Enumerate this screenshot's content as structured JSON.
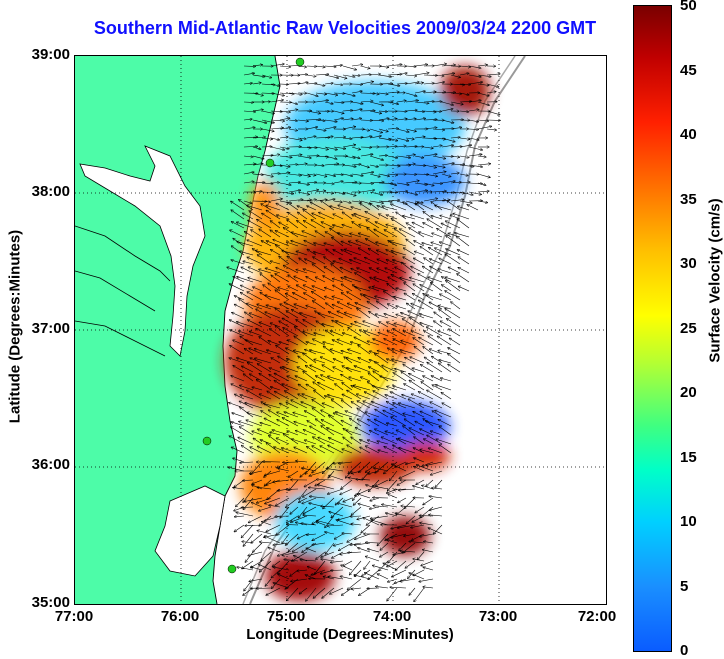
{
  "title": "Southern Mid-Atlantic Raw Velocities 2009/03/24 2200 GMT",
  "axes": {
    "xlabel": "Longitude (Degrees:Minutes)",
    "ylabel": "Latitude (Degrees:Minutes)",
    "xticks": [
      "77:00",
      "76:00",
      "75:00",
      "74:00",
      "73:00",
      "72:00"
    ],
    "yticks": [
      "39:00",
      "38:00",
      "37:00",
      "36:00",
      "35:00"
    ]
  },
  "colorbar": {
    "label": "Surface Velocity (cm/s)",
    "ticks": [
      "50",
      "45",
      "40",
      "35",
      "30",
      "25",
      "20",
      "15",
      "10",
      "5",
      "0"
    ],
    "range": [
      0,
      50
    ]
  },
  "colors": {
    "land": "#4dfca8",
    "title": "#1010ff",
    "station": "#22cc22"
  }
}
